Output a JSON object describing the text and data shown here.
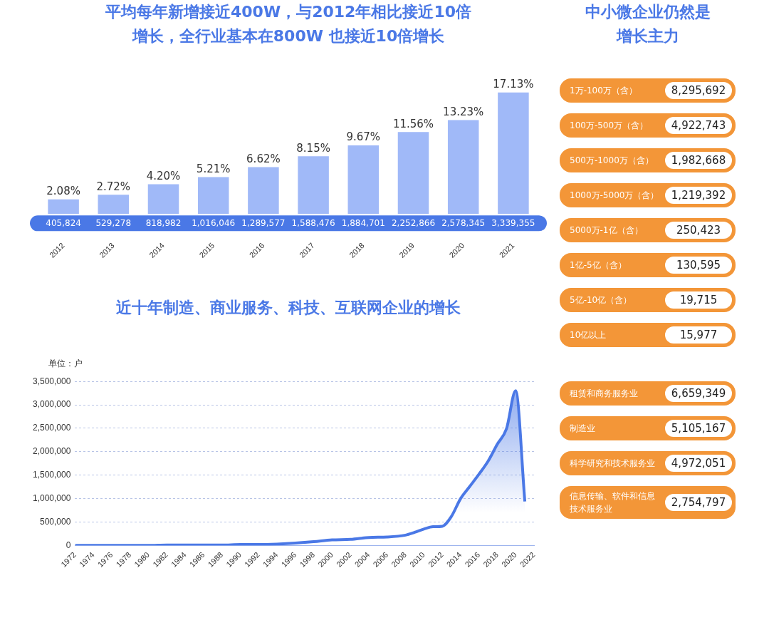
{
  "chart_data": [
    {
      "type": "bar",
      "title": "平均每年新增接近400W，与2012年相比接近10倍增长，全行业基本在800W 也接近10倍增长",
      "categories": [
        "2012",
        "2013",
        "2014",
        "2015",
        "2016",
        "2017",
        "2018",
        "2019",
        "2020",
        "2021"
      ],
      "values": [
        2.08,
        2.72,
        4.2,
        5.21,
        6.62,
        8.15,
        9.67,
        11.56,
        13.23,
        17.13
      ],
      "value_labels": [
        "2.08%",
        "2.72%",
        "4.20%",
        "5.21%",
        "6.62%",
        "8.15%",
        "9.67%",
        "11.56%",
        "13.23%",
        "17.13%"
      ],
      "color": "#a0b9f8",
      "tick_labels": "x",
      "annotations": [
        "405,824",
        "529,278",
        "818,982",
        "1,016,046",
        "1,289,577",
        "1,588,476",
        "1,884,701",
        "2,252,866",
        "2,578,345",
        "3,339,355"
      ]
    },
    {
      "type": "other",
      "title": "中小微企业仍然是增长主力",
      "categories": [
        "1万-100万（含）",
        "100万-500万（含）",
        "500万-1000万（含）",
        "1000万-5000万（含）",
        "5000万-1亿（含）",
        "1亿-5亿（含）",
        "5亿-10亿（含）",
        "10亿以上"
      ],
      "value_labels": [
        "8,295,692",
        "4,922,743",
        "1,982,668",
        "1,219,392",
        "250,423",
        "130,595",
        "19,715",
        "15,977"
      ],
      "color": "#f39638"
    },
    {
      "type": "area",
      "title": "近十年制造、商业服务、科技、互联网企业的增长",
      "ylabel": "单位：户",
      "x": [
        1972,
        1974,
        1976,
        1978,
        1980,
        1982,
        1984,
        1986,
        1988,
        1990,
        1992,
        1994,
        1996,
        1998,
        2000,
        2002,
        2004,
        2006,
        2008,
        2009,
        2010,
        2011,
        2012,
        2013,
        2014,
        2015,
        2016,
        2017,
        2018,
        2019,
        2020,
        2021
      ],
      "values": [
        0,
        0,
        0,
        0,
        0,
        10000,
        10000,
        10000,
        10000,
        20000,
        20000,
        30000,
        50000,
        80000,
        120000,
        130000,
        170000,
        180000,
        220000,
        280000,
        350000,
        400000,
        410000,
        620000,
        1000000,
        1260000,
        1520000,
        1800000,
        2160000,
        2490000,
        3300000,
        940000
      ],
      "color": "#4a78e6",
      "marker": "none",
      "grid": "y",
      "xlim": [
        1972,
        2022
      ],
      "xticks": [
        1972,
        1974,
        1976,
        1978,
        1980,
        1982,
        1984,
        1986,
        1988,
        1990,
        1992,
        1994,
        1996,
        1998,
        2000,
        2002,
        2004,
        2006,
        2008,
        2010,
        2012,
        2014,
        2016,
        2018,
        2020,
        2022
      ],
      "ylim": [
        0,
        3500000
      ],
      "yticks": [
        0,
        {
          "value": 500000,
          "label": "500,000"
        },
        {
          "value": 1000000,
          "label": "1,000,000"
        },
        {
          "value": 1500000,
          "label": "1,500,000"
        },
        {
          "value": 2000000,
          "label": "2,000,000"
        },
        {
          "value": 2500000,
          "label": "2,500,000"
        },
        {
          "value": 3000000,
          "label": "3,000,000"
        },
        {
          "value": 3500000,
          "label": "3,500,000"
        }
      ]
    },
    {
      "type": "other",
      "categories": [
        "租赁和商务服务业",
        "制造业",
        "科学研究和技术服务业",
        "信息传输、软件和信息技术服务业"
      ],
      "value_labels": [
        "6,659,349",
        "5,105,167",
        "4,972,051",
        "2,754,797"
      ],
      "color": "#f39638"
    }
  ]
}
